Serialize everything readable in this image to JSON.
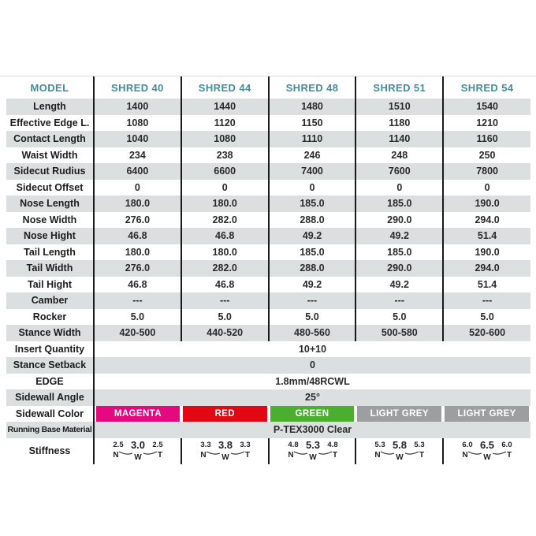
{
  "colors": {
    "header_text": "#3F8E9C",
    "row_stripe": "#DCDFE0",
    "divider": "#1A1A1A",
    "magenta": "#E5097F",
    "red": "#E30613",
    "green": "#4BAE2F",
    "light_grey": "#9D9EA0"
  },
  "table": {
    "header": {
      "model_label": "MODEL",
      "columns": [
        "SHRED 40",
        "SHRED 44",
        "SHRED 48",
        "SHRED 51",
        "SHRED 54"
      ]
    },
    "stiffness_letters": [
      "N",
      "W",
      "T"
    ],
    "rows": [
      {
        "type": "normal",
        "label": "Length",
        "values": [
          "1400",
          "1440",
          "1480",
          "1510",
          "1540"
        ]
      },
      {
        "type": "normal",
        "label": "Effective Edge L.",
        "values": [
          "1080",
          "1120",
          "1150",
          "1180",
          "1210"
        ]
      },
      {
        "type": "normal",
        "label": "Contact Length",
        "values": [
          "1040",
          "1080",
          "1110",
          "1140",
          "1160"
        ]
      },
      {
        "type": "normal",
        "label": "Waist Width",
        "values": [
          "234",
          "238",
          "246",
          "248",
          "250"
        ]
      },
      {
        "type": "normal",
        "label": "Sidecut Rudius",
        "values": [
          "6400",
          "6600",
          "7400",
          "7600",
          "7800"
        ]
      },
      {
        "type": "normal",
        "label": "Sidecut Offset",
        "values": [
          "0",
          "0",
          "0",
          "0",
          "0"
        ]
      },
      {
        "type": "normal",
        "label": "Nose Length",
        "values": [
          "180.0",
          "180.0",
          "185.0",
          "185.0",
          "190.0"
        ]
      },
      {
        "type": "normal",
        "label": "Nose Width",
        "values": [
          "276.0",
          "282.0",
          "288.0",
          "290.0",
          "294.0"
        ]
      },
      {
        "type": "normal",
        "label": "Nose Hight",
        "values": [
          "46.8",
          "46.8",
          "49.2",
          "49.2",
          "51.4"
        ]
      },
      {
        "type": "normal",
        "label": "Tail Length",
        "values": [
          "180.0",
          "180.0",
          "185.0",
          "185.0",
          "190.0"
        ]
      },
      {
        "type": "normal",
        "label": "Tail Width",
        "values": [
          "276.0",
          "282.0",
          "288.0",
          "290.0",
          "294.0"
        ]
      },
      {
        "type": "normal",
        "label": "Tail Hight",
        "values": [
          "46.8",
          "46.8",
          "49.2",
          "49.2",
          "51.4"
        ]
      },
      {
        "type": "normal",
        "label": "Camber",
        "values": [
          "---",
          "---",
          "---",
          "---",
          "---"
        ]
      },
      {
        "type": "normal",
        "label": "Rocker",
        "values": [
          "5.0",
          "5.0",
          "5.0",
          "5.0",
          "5.0"
        ]
      },
      {
        "type": "normal",
        "label": "Stance Width",
        "values": [
          "420-500",
          "440-520",
          "480-560",
          "500-580",
          "520-600"
        ]
      },
      {
        "type": "span",
        "label": "Insert Quantity",
        "span_value": "10+10"
      },
      {
        "type": "span",
        "label": "Stance Setback",
        "span_value": "0"
      },
      {
        "type": "span",
        "label": "EDGE",
        "span_value": "1.8mm/48RCWL"
      },
      {
        "type": "span",
        "label": "Sidewall Angle",
        "span_value": "25°"
      },
      {
        "type": "color",
        "label": "Sidewall Color",
        "values": [
          {
            "name": "MAGENTA",
            "color": "#E5097F"
          },
          {
            "name": "RED",
            "color": "#E30613"
          },
          {
            "name": "GREEN",
            "color": "#4BAE2F"
          },
          {
            "name": "LIGHT GREY",
            "color": "#9D9EA0"
          },
          {
            "name": "LIGHT GREY",
            "color": "#9D9EA0"
          }
        ]
      },
      {
        "type": "span",
        "label": "Running Base Material",
        "condensed": true,
        "span_value": "P-TEX3000 Clear"
      },
      {
        "type": "stiffness",
        "label": "Stiffness",
        "values": [
          {
            "nose": "2.5",
            "waist": "3.0",
            "tail": "2.5"
          },
          {
            "nose": "3.3",
            "waist": "3.8",
            "tail": "3.3"
          },
          {
            "nose": "4.8",
            "waist": "5.3",
            "tail": "4.8"
          },
          {
            "nose": "5.3",
            "waist": "5.8",
            "tail": "5.3"
          },
          {
            "nose": "6.0",
            "waist": "6.5",
            "tail": "6.0"
          }
        ]
      }
    ]
  }
}
